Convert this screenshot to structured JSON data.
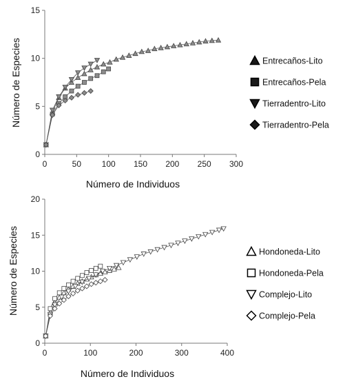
{
  "chart_data": [
    {
      "type": "scatter",
      "title": "",
      "xlabel": "Número de Individuos",
      "ylabel": "Número de Especies",
      "xlim": [
        0,
        300
      ],
      "ylim": [
        0,
        15
      ],
      "xticks": [
        0,
        50,
        100,
        150,
        200,
        250,
        300
      ],
      "yticks": [
        0,
        5,
        10,
        15
      ],
      "grid": false,
      "legend_position": "right",
      "series": [
        {
          "name": "Entrecaños-Lito",
          "marker": "triangle-up",
          "fill": "#8c8c8c",
          "x": [
            2,
            12,
            22,
            32,
            42,
            52,
            62,
            72,
            82,
            92,
            102,
            112,
            122,
            132,
            142,
            152,
            162,
            172,
            182,
            192,
            202,
            212,
            222,
            232,
            242,
            252,
            262,
            272
          ],
          "y": [
            1.0,
            4.4,
            5.9,
            6.9,
            7.5,
            8.0,
            8.4,
            8.8,
            9.1,
            9.4,
            9.6,
            9.9,
            10.1,
            10.3,
            10.5,
            10.7,
            10.8,
            11.0,
            11.1,
            11.2,
            11.3,
            11.4,
            11.5,
            11.6,
            11.7,
            11.8,
            11.85,
            11.9
          ]
        },
        {
          "name": "Entrecaños-Pela",
          "marker": "square",
          "fill": "#8c8c8c",
          "x": [
            2,
            12,
            22,
            32,
            42,
            52,
            62,
            72,
            82,
            92,
            100
          ],
          "y": [
            1.0,
            4.2,
            5.3,
            6.0,
            6.6,
            7.1,
            7.5,
            7.9,
            8.2,
            8.6,
            8.9
          ]
        },
        {
          "name": "Tierradentro-Lito",
          "marker": "triangle-down",
          "fill": "#8c8c8c",
          "x": [
            2,
            12,
            22,
            32,
            42,
            52,
            62,
            72,
            82
          ],
          "y": [
            1.0,
            4.6,
            6.0,
            7.0,
            7.8,
            8.5,
            9.0,
            9.4,
            9.8
          ]
        },
        {
          "name": "Tierradentro-Pela",
          "marker": "diamond",
          "fill": "#8c8c8c",
          "x": [
            2,
            12,
            22,
            32,
            42,
            52,
            62,
            72
          ],
          "y": [
            1.0,
            4.1,
            5.1,
            5.6,
            5.9,
            6.2,
            6.4,
            6.6
          ]
        }
      ]
    },
    {
      "type": "scatter",
      "title": "",
      "xlabel": "Número de Individuos",
      "ylabel": "Número de Especies",
      "xlim": [
        0,
        400
      ],
      "ylim": [
        0,
        20
      ],
      "xticks": [
        0,
        100,
        200,
        300,
        400
      ],
      "yticks": [
        0,
        5,
        10,
        15,
        20
      ],
      "grid": false,
      "legend_position": "right",
      "series": [
        {
          "name": "Hondoneda-Lito",
          "marker": "triangle-up",
          "fill": "#ffffff",
          "x": [
            2,
            12,
            22,
            32,
            42,
            52,
            62,
            72,
            82,
            92,
            102,
            112,
            122,
            132,
            142,
            152,
            162
          ],
          "y": [
            1.0,
            4.3,
            5.6,
            6.4,
            7.0,
            7.5,
            7.9,
            8.3,
            8.6,
            8.9,
            9.2,
            9.5,
            9.7,
            9.9,
            10.1,
            10.3,
            10.5
          ]
        },
        {
          "name": "Hondoneda-Pela",
          "marker": "square",
          "fill": "#ffffff",
          "x": [
            2,
            12,
            22,
            32,
            42,
            52,
            62,
            72,
            82,
            92,
            102,
            112,
            122
          ],
          "y": [
            1.0,
            4.8,
            6.2,
            7.0,
            7.6,
            8.1,
            8.6,
            9.0,
            9.4,
            9.8,
            10.1,
            10.4,
            10.7
          ]
        },
        {
          "name": "Complejo-Lito",
          "marker": "triangle-down",
          "fill": "#ffffff",
          "x": [
            2,
            12,
            22,
            37,
            52,
            67,
            82,
            97,
            112,
            127,
            142,
            157,
            172,
            187,
            202,
            217,
            232,
            247,
            262,
            277,
            292,
            307,
            322,
            337,
            352,
            367,
            382,
            392
          ],
          "y": [
            1.0,
            4.0,
            5.3,
            6.4,
            7.2,
            7.9,
            8.5,
            9.0,
            9.5,
            10.0,
            10.4,
            10.8,
            11.2,
            11.6,
            12.0,
            12.4,
            12.7,
            13.0,
            13.3,
            13.6,
            13.9,
            14.2,
            14.5,
            14.8,
            15.1,
            15.4,
            15.7,
            15.9
          ]
        },
        {
          "name": "Complejo-Pela",
          "marker": "diamond",
          "fill": "#ffffff",
          "x": [
            2,
            12,
            22,
            32,
            42,
            52,
            62,
            72,
            82,
            92,
            102,
            112,
            122,
            132
          ],
          "y": [
            1.0,
            3.8,
            4.8,
            5.5,
            6.0,
            6.5,
            6.9,
            7.3,
            7.6,
            7.9,
            8.2,
            8.4,
            8.6,
            8.8
          ]
        }
      ]
    }
  ]
}
